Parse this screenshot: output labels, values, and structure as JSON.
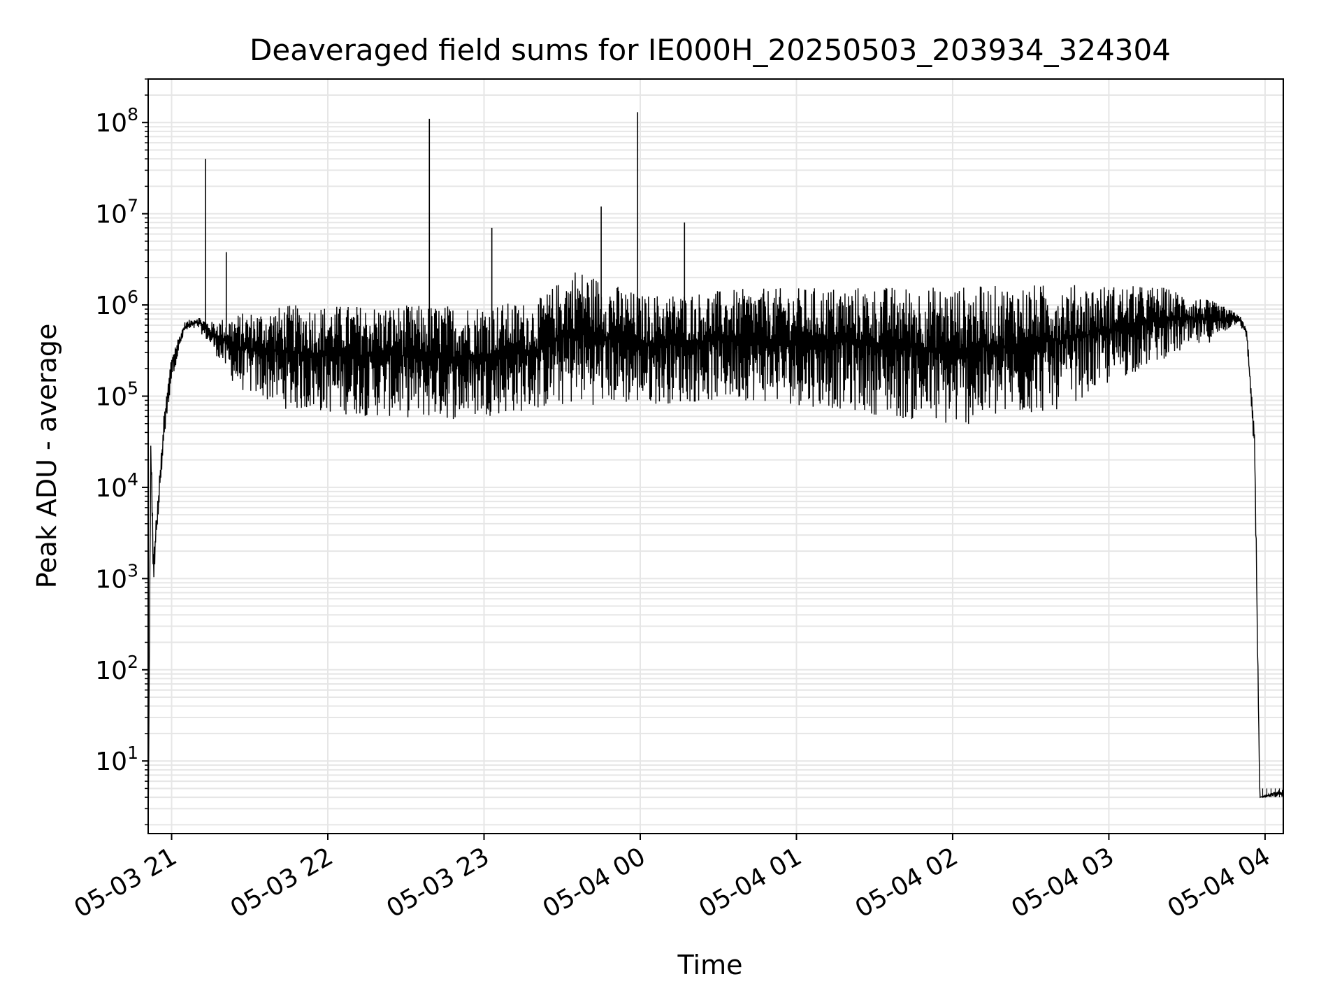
{
  "chart_data": {
    "type": "line",
    "title": "Deaveraged field sums for IE000H_20250503_203934_324304",
    "xlabel": "Time",
    "ylabel": "Peak ADU - average",
    "yscale": "log",
    "ylim": [
      1.6,
      300000000
    ],
    "xlim": [
      "2025-05-03 20:51",
      "2025-05-04 04:07"
    ],
    "grid": true,
    "x_ticks": [
      {
        "value": "2025-05-03 21:00",
        "label": "05-03 21"
      },
      {
        "value": "2025-05-03 22:00",
        "label": "05-03 22"
      },
      {
        "value": "2025-05-03 23:00",
        "label": "05-03 23"
      },
      {
        "value": "2025-05-04 00:00",
        "label": "05-04 00"
      },
      {
        "value": "2025-05-04 01:00",
        "label": "05-04 01"
      },
      {
        "value": "2025-05-04 02:00",
        "label": "05-04 02"
      },
      {
        "value": "2025-05-04 03:00",
        "label": "05-04 03"
      },
      {
        "value": "2025-05-04 04:00",
        "label": "05-04 04"
      }
    ],
    "y_ticks": [
      {
        "value": 10,
        "base": "10",
        "exp": "1"
      },
      {
        "value": 100,
        "base": "10",
        "exp": "2"
      },
      {
        "value": 1000,
        "base": "10",
        "exp": "3"
      },
      {
        "value": 10000,
        "base": "10",
        "exp": "4"
      },
      {
        "value": 100000,
        "base": "10",
        "exp": "5"
      },
      {
        "value": 1000000,
        "base": "10",
        "exp": "6"
      },
      {
        "value": 10000000,
        "base": "10",
        "exp": "7"
      },
      {
        "value": 100000000,
        "base": "10",
        "exp": "8"
      }
    ],
    "series": [
      {
        "color": "#000000",
        "envelope": [
          {
            "t": "2025-05-03 20:51",
            "low": 1.6,
            "high": 1.6
          },
          {
            "t": "2025-05-03 20:52",
            "low": 10000,
            "high": 55000
          },
          {
            "t": "2025-05-03 20:53",
            "low": 800,
            "high": 2000
          },
          {
            "t": "2025-05-03 20:55",
            "low": 5000,
            "high": 10000
          },
          {
            "t": "2025-05-03 20:57",
            "low": 30000,
            "high": 60000
          },
          {
            "t": "2025-05-03 21:00",
            "low": 150000,
            "high": 300000
          },
          {
            "t": "2025-05-03 21:05",
            "low": 500000,
            "high": 650000
          },
          {
            "t": "2025-05-03 21:10",
            "low": 550000,
            "high": 760000
          },
          {
            "t": "2025-05-03 21:15",
            "low": 350000,
            "high": 650000
          },
          {
            "t": "2025-05-03 21:25",
            "low": 120000,
            "high": 800000
          },
          {
            "t": "2025-05-03 21:45",
            "low": 70000,
            "high": 1000000
          },
          {
            "t": "2025-05-03 22:15",
            "low": 60000,
            "high": 1000000
          },
          {
            "t": "2025-05-03 22:50",
            "low": 55000,
            "high": 1000000
          },
          {
            "t": "2025-05-03 23:20",
            "low": 70000,
            "high": 1100000
          },
          {
            "t": "2025-05-03 23:35",
            "low": 80000,
            "high": 2600000
          },
          {
            "t": "2025-05-04 00:00",
            "low": 80000,
            "high": 1300000
          },
          {
            "t": "2025-05-04 00:40",
            "low": 90000,
            "high": 1500000
          },
          {
            "t": "2025-05-04 01:20",
            "low": 70000,
            "high": 1600000
          },
          {
            "t": "2025-05-04 02:00",
            "low": 45000,
            "high": 1600000
          },
          {
            "t": "2025-05-04 02:40",
            "low": 70000,
            "high": 1700000
          },
          {
            "t": "2025-05-04 03:20",
            "low": 250000,
            "high": 1600000
          },
          {
            "t": "2025-05-04 03:40",
            "low": 400000,
            "high": 1100000
          },
          {
            "t": "2025-05-04 03:50",
            "low": 650000,
            "high": 800000
          },
          {
            "t": "2025-05-04 03:53",
            "low": 400000,
            "high": 550000
          },
          {
            "t": "2025-05-04 03:56",
            "low": 20000,
            "high": 40000
          },
          {
            "t": "2025-05-04 03:57",
            "low": 200,
            "high": 500
          },
          {
            "t": "2025-05-04 03:58",
            "low": 4,
            "high": 4
          },
          {
            "t": "2025-05-04 04:07",
            "low": 4,
            "high": 5
          }
        ],
        "spikes": [
          {
            "t": "2025-05-03 21:13",
            "value": 40000000
          },
          {
            "t": "2025-05-03 21:21",
            "value": 3800000
          },
          {
            "t": "2025-05-03 22:39",
            "value": 110000000
          },
          {
            "t": "2025-05-03 23:03",
            "value": 7000000
          },
          {
            "t": "2025-05-03 23:45",
            "value": 12000000
          },
          {
            "t": "2025-05-03 23:59",
            "value": 130000000
          },
          {
            "t": "2025-05-04 00:17",
            "value": 8000000
          }
        ]
      }
    ]
  }
}
